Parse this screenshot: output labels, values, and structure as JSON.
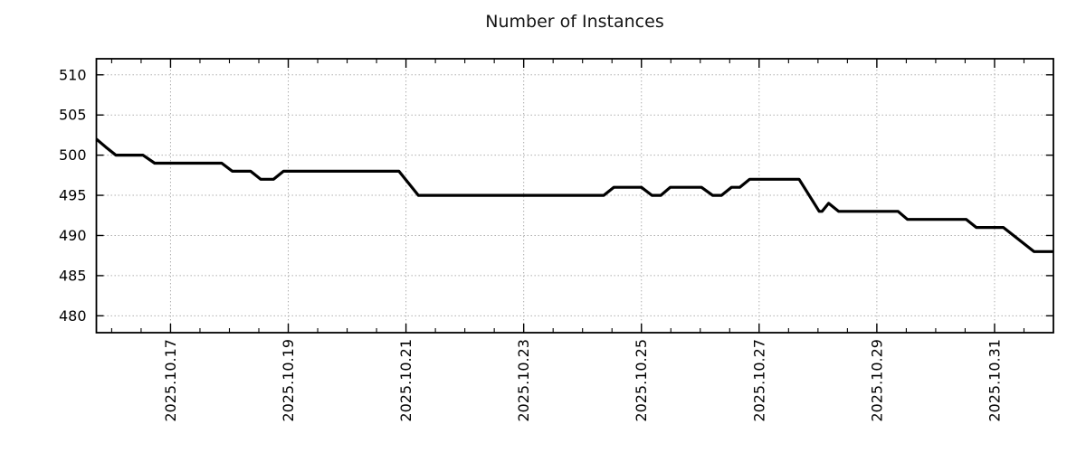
{
  "page": {
    "background": "#ffffff"
  },
  "chart_data": {
    "type": "line",
    "title": "Number of Instances",
    "legend": null,
    "grid": {
      "visible": true,
      "style": "dotted",
      "color": "#a9a9a9"
    },
    "x_axis": {
      "unit": "date (day of 2025.10; 32 = 2025.11.01)",
      "range_days": [
        15.74,
        32.0
      ],
      "minor_tick_step_days": 0.5,
      "major_ticks": [
        {
          "day": 17,
          "label": "2025.10.17"
        },
        {
          "day": 19,
          "label": "2025.10.19"
        },
        {
          "day": 21,
          "label": "2025.10.21"
        },
        {
          "day": 23,
          "label": "2025.10.23"
        },
        {
          "day": 25,
          "label": "2025.10.25"
        },
        {
          "day": 27,
          "label": "2025.10.27"
        },
        {
          "day": 29,
          "label": "2025.10.29"
        },
        {
          "day": 31,
          "label": "2025.10.31"
        }
      ]
    },
    "y_axis": {
      "ticks": [
        480,
        485,
        490,
        495,
        500,
        505,
        510
      ],
      "range": [
        477.9,
        512.0
      ]
    },
    "series": [
      {
        "name": "instances",
        "color": "#000000",
        "points": [
          [
            15.74,
            502
          ],
          [
            15.9,
            501
          ],
          [
            16.07,
            500
          ],
          [
            16.53,
            500
          ],
          [
            16.73,
            499
          ],
          [
            17.87,
            499
          ],
          [
            18.05,
            498
          ],
          [
            18.36,
            498
          ],
          [
            18.53,
            497
          ],
          [
            18.75,
            497
          ],
          [
            18.92,
            498
          ],
          [
            20.88,
            498
          ],
          [
            21.21,
            495
          ],
          [
            24.36,
            495
          ],
          [
            24.53,
            496
          ],
          [
            25.0,
            496
          ],
          [
            25.18,
            495
          ],
          [
            25.33,
            495
          ],
          [
            25.49,
            496
          ],
          [
            26.02,
            496
          ],
          [
            26.21,
            495
          ],
          [
            26.36,
            495
          ],
          [
            26.53,
            496
          ],
          [
            26.67,
            496
          ],
          [
            26.84,
            497
          ],
          [
            27.68,
            497
          ],
          [
            28.02,
            493
          ],
          [
            28.07,
            493
          ],
          [
            28.18,
            494
          ],
          [
            28.35,
            493
          ],
          [
            29.36,
            493
          ],
          [
            29.52,
            492
          ],
          [
            30.52,
            492
          ],
          [
            30.69,
            491
          ],
          [
            31.15,
            491
          ],
          [
            31.67,
            488
          ],
          [
            32.0,
            488
          ]
        ]
      }
    ]
  }
}
